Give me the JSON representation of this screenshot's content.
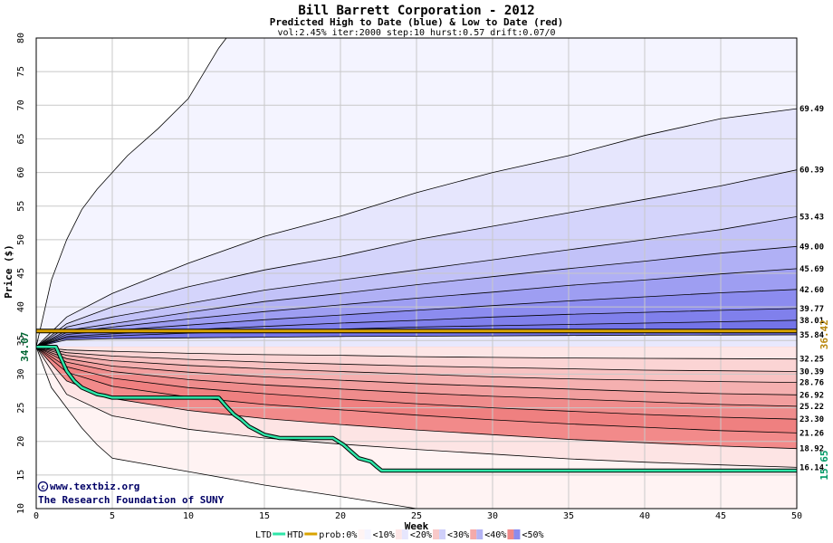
{
  "chart_data": {
    "type": "area",
    "title": "Bill Barrett Corporation - 2012",
    "subtitle": "Predicted High to Date (blue) &  Low to Date (red)",
    "params": "vol:2.45% iter:2000 step:10 hurst:0.57 drift:0.07/0",
    "xlabel": "Week",
    "ylabel": "Price ($)",
    "xlim": [
      0,
      50
    ],
    "ylim": [
      10,
      80
    ],
    "xticks": [
      0,
      5,
      10,
      15,
      20,
      25,
      30,
      35,
      40,
      45,
      50
    ],
    "yticks": [
      10,
      15,
      20,
      25,
      30,
      35,
      40,
      45,
      50,
      55,
      60,
      65,
      70,
      75,
      80
    ],
    "grid": true,
    "start_price": 34.07,
    "start_label": "34.07",
    "reference_price": 36.42,
    "reference_label": "36.42",
    "htd_final": 15.65,
    "htd_final_label": "15.65",
    "credit_line1": "www.textbiz.org",
    "credit_line2": "The Research Foundation of SUNY",
    "high_bands": [
      {
        "label": "69.49",
        "x": [
          0,
          2,
          5,
          10,
          15,
          20,
          25,
          30,
          35,
          40,
          45,
          50
        ],
        "y": [
          34.07,
          38.5,
          42,
          46.5,
          50.5,
          53.5,
          57,
          60,
          62.5,
          65.5,
          68,
          69.49
        ]
      },
      {
        "label": "60.39",
        "x": [
          0,
          2,
          5,
          10,
          15,
          20,
          25,
          30,
          35,
          40,
          45,
          50
        ],
        "y": [
          34.07,
          37.5,
          40,
          43,
          45.5,
          47.5,
          50,
          52,
          54,
          56,
          58,
          60.39
        ]
      },
      {
        "label": "53.43",
        "x": [
          0,
          2,
          5,
          10,
          15,
          20,
          25,
          30,
          35,
          40,
          45,
          50
        ],
        "y": [
          34.07,
          37,
          38.5,
          40.5,
          42.5,
          44,
          45.5,
          47,
          48.5,
          50,
          51.5,
          53.43
        ]
      },
      {
        "label": "49.00",
        "x": [
          0,
          2,
          5,
          10,
          15,
          20,
          25,
          30,
          35,
          40,
          45,
          50
        ],
        "y": [
          34.07,
          36.5,
          37.5,
          39.2,
          40.8,
          42,
          43.3,
          44.5,
          45.7,
          46.8,
          48,
          49.0
        ]
      },
      {
        "label": "45.69",
        "x": [
          0,
          2,
          5,
          10,
          15,
          20,
          25,
          30,
          35,
          40,
          45,
          50
        ],
        "y": [
          34.07,
          36.2,
          37,
          38.2,
          39.3,
          40.3,
          41.3,
          42.2,
          43.2,
          44,
          44.9,
          45.69
        ]
      },
      {
        "label": "42.60",
        "x": [
          0,
          2,
          5,
          10,
          15,
          20,
          25,
          30,
          35,
          40,
          45,
          50
        ],
        "y": [
          34.07,
          35.9,
          36.5,
          37.3,
          38.1,
          38.8,
          39.5,
          40.2,
          40.9,
          41.5,
          42.1,
          42.6
        ]
      },
      {
        "label": "39.77",
        "x": [
          0,
          2,
          5,
          10,
          15,
          20,
          25,
          30,
          35,
          40,
          45,
          50
        ],
        "y": [
          34.07,
          35.6,
          36,
          36.6,
          37.1,
          37.6,
          38,
          38.5,
          38.9,
          39.2,
          39.5,
          39.77
        ]
      },
      {
        "label": "38.01",
        "x": [
          0,
          2,
          5,
          10,
          15,
          20,
          25,
          30,
          35,
          40,
          45,
          50
        ],
        "y": [
          34.07,
          35.4,
          35.7,
          36.1,
          36.4,
          36.7,
          37,
          37.2,
          37.4,
          37.6,
          37.8,
          38.01
        ]
      },
      {
        "label": "35.84",
        "x": [
          0,
          2,
          5,
          10,
          15,
          20,
          25,
          30,
          35,
          40,
          45,
          50
        ],
        "y": [
          34.07,
          35.1,
          35.3,
          35.4,
          35.5,
          35.6,
          35.65,
          35.7,
          35.75,
          35.8,
          35.82,
          35.84
        ]
      }
    ],
    "low_bands": [
      {
        "label": "32.25",
        "x": [
          0,
          2,
          5,
          10,
          15,
          20,
          25,
          30,
          35,
          40,
          45,
          50
        ],
        "y": [
          34.07,
          33.6,
          33.4,
          33.1,
          32.9,
          32.8,
          32.6,
          32.5,
          32.4,
          32.35,
          32.3,
          32.25
        ]
      },
      {
        "label": "30.39",
        "x": [
          0,
          2,
          5,
          10,
          15,
          20,
          25,
          30,
          35,
          40,
          45,
          50
        ],
        "y": [
          34.07,
          33.2,
          32.7,
          32.2,
          31.8,
          31.5,
          31.2,
          31,
          30.8,
          30.6,
          30.5,
          30.39
        ]
      },
      {
        "label": "28.76",
        "x": [
          0,
          2,
          5,
          10,
          15,
          20,
          25,
          30,
          35,
          40,
          45,
          50
        ],
        "y": [
          34.07,
          32.8,
          32,
          31.3,
          30.8,
          30.4,
          30,
          29.6,
          29.3,
          29.1,
          28.9,
          28.76
        ]
      },
      {
        "label": "26.92",
        "x": [
          0,
          2,
          5,
          10,
          15,
          20,
          25,
          30,
          35,
          40,
          45,
          50
        ],
        "y": [
          34.07,
          32.3,
          31.2,
          30.3,
          29.6,
          29.1,
          28.6,
          28.2,
          27.8,
          27.4,
          27.1,
          26.92
        ]
      },
      {
        "label": "25.22",
        "x": [
          0,
          2,
          5,
          10,
          15,
          20,
          25,
          30,
          35,
          40,
          45,
          50
        ],
        "y": [
          34.07,
          31.8,
          30.4,
          29.2,
          28.4,
          27.8,
          27.2,
          26.7,
          26.3,
          25.9,
          25.5,
          25.22
        ]
      },
      {
        "label": "23.30",
        "x": [
          0,
          2,
          5,
          10,
          15,
          20,
          25,
          30,
          35,
          40,
          45,
          50
        ],
        "y": [
          34.07,
          31.1,
          29.4,
          28,
          27.1,
          26.3,
          25.6,
          25,
          24.5,
          24,
          23.6,
          23.3
        ]
      },
      {
        "label": "21.26",
        "x": [
          0,
          2,
          5,
          10,
          15,
          20,
          25,
          30,
          35,
          40,
          45,
          50
        ],
        "y": [
          34.07,
          30.3,
          28.2,
          26.6,
          25.5,
          24.7,
          23.9,
          23.2,
          22.6,
          22.1,
          21.6,
          21.26
        ]
      },
      {
        "label": "18.92",
        "x": [
          0,
          2,
          5,
          10,
          15,
          20,
          25,
          30,
          35,
          40,
          45,
          50
        ],
        "y": [
          34.07,
          29,
          26.4,
          24.6,
          23.4,
          22.5,
          21.7,
          21,
          20.3,
          19.8,
          19.3,
          18.92
        ]
      },
      {
        "label": "16.14",
        "x": [
          0,
          2,
          5,
          10,
          15,
          20,
          25,
          30,
          35,
          40,
          45,
          50
        ],
        "y": [
          34.07,
          27,
          23.8,
          21.8,
          20.5,
          19.6,
          18.8,
          18.1,
          17.4,
          16.9,
          16.5,
          16.14
        ]
      }
    ],
    "outer_high": {
      "x": [
        0,
        1,
        2,
        3,
        4,
        5,
        6,
        8,
        10,
        12,
        12.5
      ],
      "y": [
        34.07,
        44,
        50,
        54.5,
        57.5,
        60,
        62.5,
        66.5,
        71,
        78.5,
        80
      ]
    },
    "outer_low": {
      "x": [
        0,
        1,
        2,
        3,
        4,
        5,
        10,
        15,
        20,
        25
      ],
      "y": [
        34.07,
        28,
        25,
        22,
        19.5,
        17.5,
        15.5,
        13.5,
        11.8,
        10
      ]
    },
    "htd_series": {
      "name": "HTD",
      "x": [
        0,
        1.3,
        1.6,
        2,
        2.5,
        3,
        3.5,
        4,
        4.5,
        5,
        12,
        12.5,
        13,
        13.5,
        14,
        14.5,
        15,
        16,
        19.5,
        20.2,
        20.7,
        21.2,
        22,
        22.4,
        22.7,
        50
      ],
      "y": [
        34.07,
        34.07,
        32.5,
        30.5,
        29,
        28,
        27.5,
        27,
        26.8,
        26.5,
        26.5,
        25.2,
        24,
        23.2,
        22.2,
        21.6,
        21,
        20.5,
        20.5,
        19.5,
        18.5,
        17.5,
        17,
        16.2,
        15.65,
        15.65
      ]
    },
    "ref_series": {
      "name": "HTD",
      "value": 36.42
    },
    "legend": {
      "items": [
        "LTD",
        "HTD",
        "prob:0%",
        "<10%",
        "<20%",
        "<30%",
        "<40%",
        "<50%"
      ],
      "placement": "bottom"
    },
    "colors": {
      "outer_high_fill": "#f4f4ff",
      "high_fills": [
        "#e6e6fd",
        "#d4d4fb",
        "#c2c2f8",
        "#b0b0f5",
        "#9e9ef2",
        "#8c8cef",
        "#8080ec",
        "#7474e8",
        "#e8e8fd"
      ],
      "outer_low_fill": "#fff3f3",
      "low_fills": [
        "#fde6e6",
        "#fbd4d4",
        "#f8c2c2",
        "#f5b0b0",
        "#f29e9e",
        "#ef8c8c",
        "#ef8080",
        "#f28a8a",
        "#fde4e4"
      ],
      "htd_line": "#2ee6a8",
      "ref_line": "#d9a300",
      "grid": "#c8c8c8"
    }
  }
}
